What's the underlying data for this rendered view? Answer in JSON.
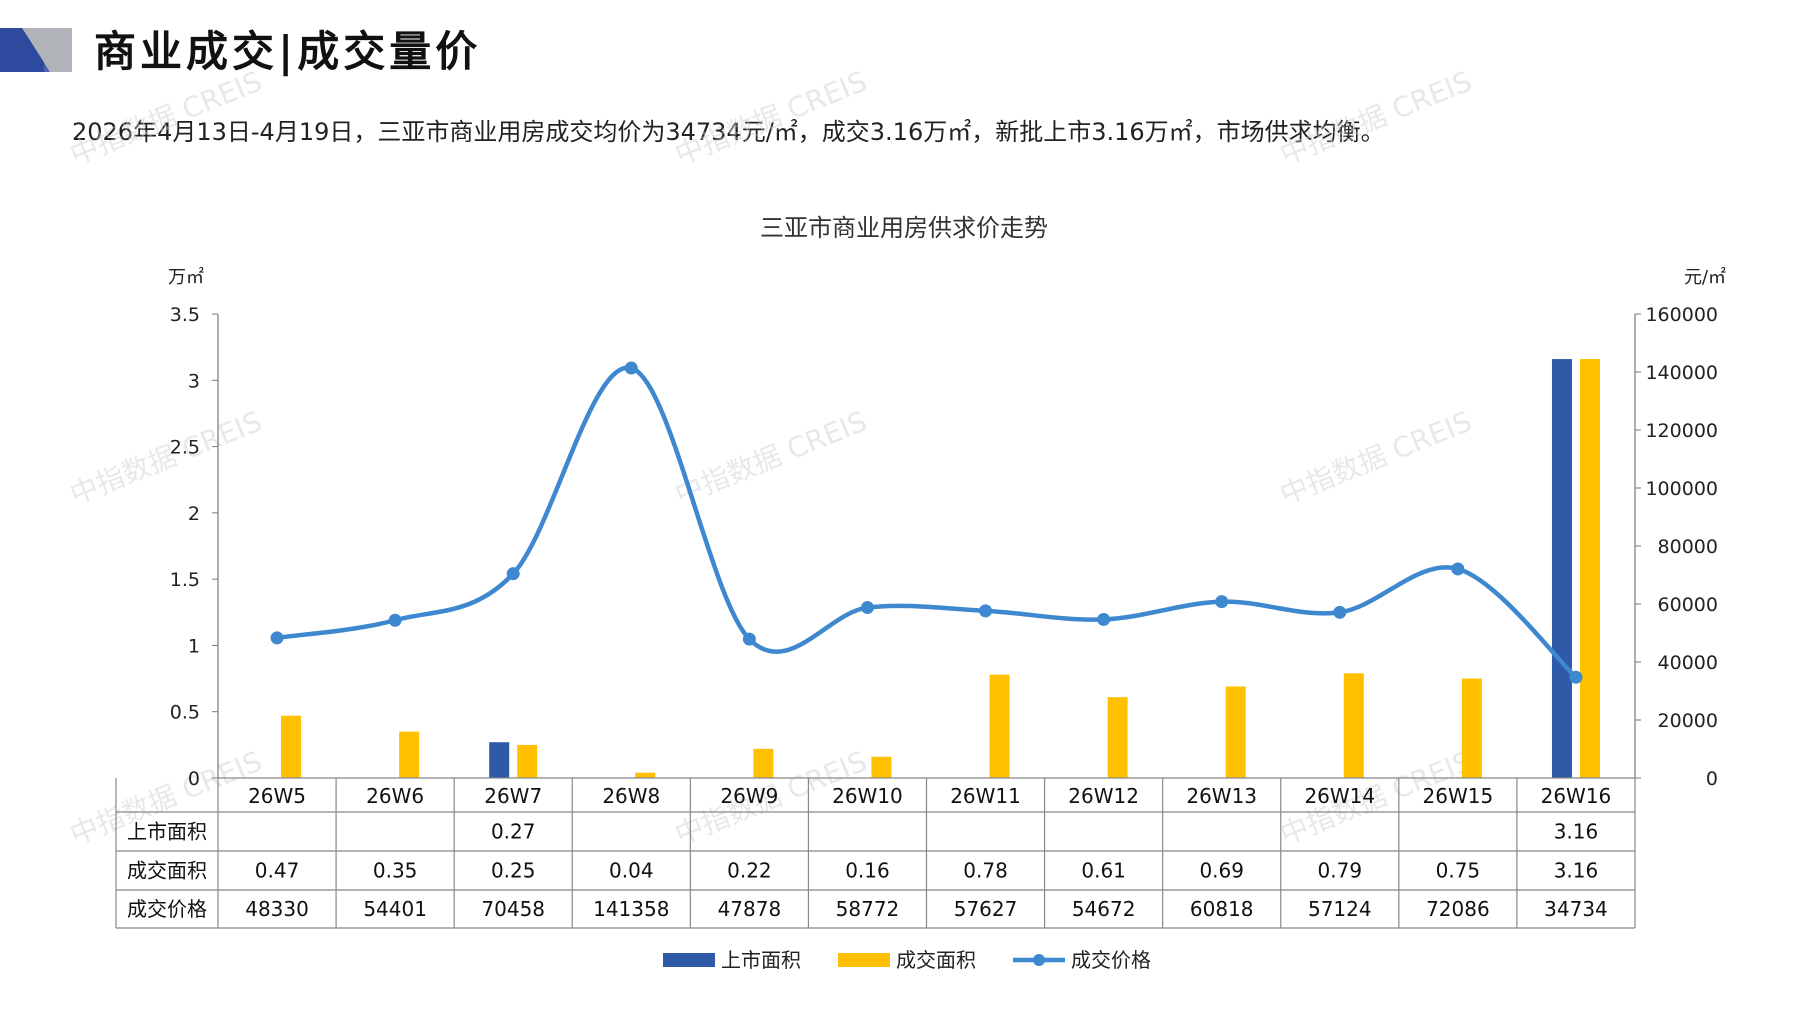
{
  "page": {
    "title": "商业成交|成交量价",
    "summary": "2026年4月13日-4月19日，三亚市商业用房成交均价为34734元/㎡，成交3.16万㎡，新批上市3.16万㎡，市场供求均衡。",
    "watermark": "中指数据 CREIS"
  },
  "colors": {
    "supply": "#2E5AA8",
    "transaction_area": "#FFC000",
    "price_line": "#3D88CF",
    "logo_blue": "#2E4A9E",
    "logo_gray": "#B0B3B8"
  },
  "chart_data": {
    "type": "bar",
    "title": "三亚市商业用房供求价走势",
    "left_unit": "万㎡",
    "right_unit": "元/㎡",
    "categories": [
      "26W5",
      "26W6",
      "26W7",
      "26W8",
      "26W9",
      "26W10",
      "26W11",
      "26W12",
      "26W13",
      "26W14",
      "26W15",
      "26W16"
    ],
    "left_axis": {
      "min": 0,
      "max": 3.5,
      "ticks": [
        "0",
        "0.5",
        "1",
        "1.5",
        "2",
        "2.5",
        "3",
        "3.5"
      ]
    },
    "right_axis": {
      "min": 0,
      "max": 160000,
      "ticks": [
        "0",
        "20000",
        "40000",
        "60000",
        "80000",
        "100000",
        "120000",
        "140000",
        "160000"
      ]
    },
    "series": [
      {
        "name": "上市面积",
        "type": "bar",
        "axis": "left",
        "values": [
          null,
          null,
          0.27,
          null,
          null,
          null,
          null,
          null,
          null,
          null,
          null,
          3.16
        ],
        "labels": [
          "",
          "",
          "0.27",
          "",
          "",
          "",
          "",
          "",
          "",
          "",
          "",
          "3.16"
        ]
      },
      {
        "name": "成交面积",
        "type": "bar",
        "axis": "left",
        "values": [
          0.47,
          0.35,
          0.25,
          0.04,
          0.22,
          0.16,
          0.78,
          0.61,
          0.69,
          0.79,
          0.75,
          3.16
        ],
        "labels": [
          "0.47",
          "0.35",
          "0.25",
          "0.04",
          "0.22",
          "0.16",
          "0.78",
          "0.61",
          "0.69",
          "0.79",
          "0.75",
          "3.16"
        ]
      },
      {
        "name": "成交价格",
        "type": "line",
        "axis": "right",
        "values": [
          48330,
          54401,
          70458,
          141358,
          47878,
          58772,
          57627,
          54672,
          60818,
          57124,
          72086,
          34734
        ],
        "labels": [
          "48330",
          "54401",
          "70458",
          "141358",
          "47878",
          "58772",
          "57627",
          "54672",
          "60818",
          "57124",
          "72086",
          "34734"
        ]
      }
    ],
    "grid": false,
    "legend": "bottom"
  }
}
